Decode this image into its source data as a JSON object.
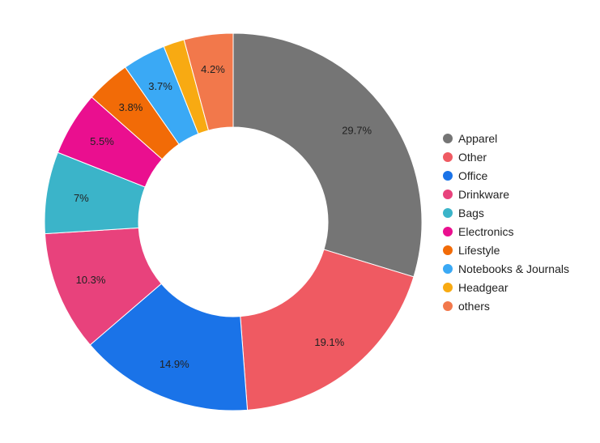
{
  "chart_data": {
    "type": "pie",
    "donut": true,
    "title": "",
    "legend_position": "right",
    "series": [
      {
        "name": "Apparel",
        "value": 29.7,
        "label": "29.7%",
        "color": "#757575"
      },
      {
        "name": "Other",
        "value": 19.1,
        "label": "19.1%",
        "color": "#ef5a62"
      },
      {
        "name": "Office",
        "value": 14.9,
        "label": "14.9%",
        "color": "#1a73e8"
      },
      {
        "name": "Drinkware",
        "value": 10.3,
        "label": "10.3%",
        "color": "#e8427c"
      },
      {
        "name": "Bags",
        "value": 7.0,
        "label": "7%",
        "color": "#3bb4c9"
      },
      {
        "name": "Electronics",
        "value": 5.5,
        "label": "5.5%",
        "color": "#ea0f8f"
      },
      {
        "name": "Lifestyle",
        "value": 3.8,
        "label": "3.8%",
        "color": "#f26b07"
      },
      {
        "name": "Notebooks & Journals",
        "value": 3.7,
        "label": "3.7%",
        "color": "#3aa9f5"
      },
      {
        "name": "Headgear",
        "value": 1.8,
        "label": "",
        "color": "#f8aa12"
      },
      {
        "name": "others",
        "value": 4.2,
        "label": "4.2%",
        "color": "#f2784b"
      }
    ]
  }
}
